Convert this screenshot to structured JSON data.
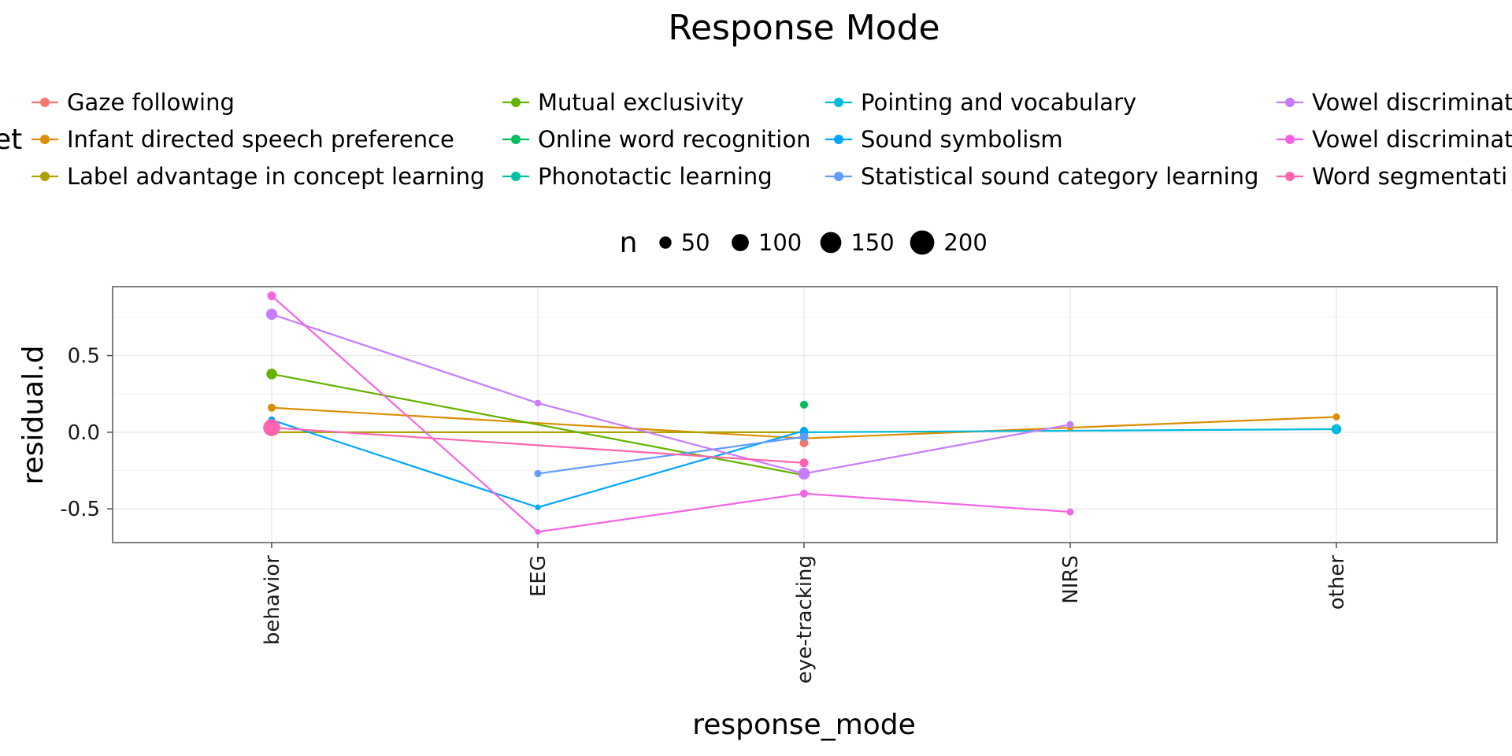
{
  "chart_data": {
    "type": "line",
    "title": "Response Mode",
    "xlabel": "response_mode",
    "ylabel": "residual.d",
    "categories": [
      "behavior",
      "EEG",
      "eye-tracking",
      "NIRS",
      "other"
    ],
    "y_ticks": [
      "0.5",
      "0.0",
      "-0.5"
    ],
    "y_tick_values": [
      0.5,
      0.0,
      -0.5
    ],
    "ylim": [
      -0.72,
      0.95
    ],
    "grid": true,
    "legend_color_title": "et",
    "legend_size_title": "n",
    "size_legend": [
      {
        "label": "50",
        "value": 50
      },
      {
        "label": "100",
        "value": 100
      },
      {
        "label": "150",
        "value": 150
      },
      {
        "label": "200",
        "value": 200
      }
    ],
    "series": [
      {
        "name": "Gaze following",
        "color": "#F8766D",
        "points": [
          {
            "x": "eye-tracking",
            "y": -0.07,
            "n": 60
          }
        ]
      },
      {
        "name": "Infant directed speech preference",
        "color": "#DB8E00",
        "points": [
          {
            "x": "behavior",
            "y": 0.16,
            "n": 50
          },
          {
            "x": "eye-tracking",
            "y": -0.04,
            "n": 40
          },
          {
            "x": "NIRS",
            "y": 0.03,
            "n": 30
          },
          {
            "x": "other",
            "y": 0.1,
            "n": 40
          }
        ]
      },
      {
        "name": "Label advantage in concept learning",
        "color": "#AEA200",
        "points": [
          {
            "x": "behavior",
            "y": 0.0,
            "n": 40
          },
          {
            "x": "eye-tracking",
            "y": 0.0,
            "n": 40
          }
        ]
      },
      {
        "name": "Mutual exclusivity",
        "color": "#64B200",
        "points": [
          {
            "x": "behavior",
            "y": 0.38,
            "n": 90
          },
          {
            "x": "eye-tracking",
            "y": -0.28,
            "n": 50
          }
        ]
      },
      {
        "name": "Online word recognition",
        "color": "#00BD5C",
        "points": [
          {
            "x": "eye-tracking",
            "y": 0.18,
            "n": 50
          }
        ]
      },
      {
        "name": "Phonotactic learning",
        "color": "#00C1A7",
        "points": [
          {
            "x": "eye-tracking",
            "y": 0.01,
            "n": 50
          }
        ]
      },
      {
        "name": "Pointing and vocabulary",
        "color": "#00BADE",
        "points": [
          {
            "x": "eye-tracking",
            "y": 0.0,
            "n": 60
          },
          {
            "x": "other",
            "y": 0.02,
            "n": 80
          }
        ]
      },
      {
        "name": "Sound symbolism",
        "color": "#00A6FF",
        "points": [
          {
            "x": "behavior",
            "y": 0.08,
            "n": 40
          },
          {
            "x": "EEG",
            "y": -0.49,
            "n": 25
          },
          {
            "x": "eye-tracking",
            "y": 0.01,
            "n": 40
          }
        ]
      },
      {
        "name": "Statistical sound category learning",
        "color": "#619CFF",
        "points": [
          {
            "x": "EEG",
            "y": -0.27,
            "n": 40
          },
          {
            "x": "eye-tracking",
            "y": -0.03,
            "n": 60
          }
        ]
      },
      {
        "name": "Vowel discriminat",
        "color": "#C77CFF",
        "points": [
          {
            "x": "behavior",
            "y": 0.77,
            "n": 100
          },
          {
            "x": "EEG",
            "y": 0.19,
            "n": 35
          },
          {
            "x": "eye-tracking",
            "y": -0.27,
            "n": 110
          },
          {
            "x": "NIRS",
            "y": 0.05,
            "n": 40
          }
        ]
      },
      {
        "name": "Vowel discriminat",
        "color": "#F564E3",
        "points": [
          {
            "x": "behavior",
            "y": 0.89,
            "n": 60
          },
          {
            "x": "EEG",
            "y": -0.65,
            "n": 25
          },
          {
            "x": "eye-tracking",
            "y": -0.4,
            "n": 50
          },
          {
            "x": "NIRS",
            "y": -0.52,
            "n": 40
          }
        ]
      },
      {
        "name": "Word segmentati",
        "color": "#FF64B0",
        "points": [
          {
            "x": "behavior",
            "y": 0.03,
            "n": 230
          },
          {
            "x": "eye-tracking",
            "y": -0.2,
            "n": 60
          }
        ]
      }
    ]
  }
}
